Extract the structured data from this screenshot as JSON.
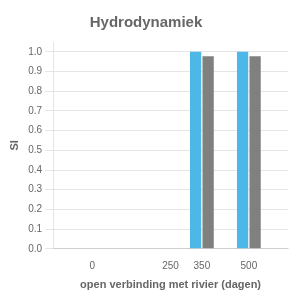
{
  "chart_data": {
    "type": "bar",
    "title": "Hydrodynamiek",
    "xlabel": "open verbinding met rivier (dagen)",
    "ylabel": "SI",
    "x": [
      350,
      500
    ],
    "series": [
      {
        "color": "#4db8e8",
        "values": [
          1.0,
          1.0
        ]
      },
      {
        "color": "#808080",
        "values": [
          0.978,
          0.978
        ]
      }
    ],
    "xlim": [
      -125,
      625
    ],
    "xticks": [
      0,
      250,
      350,
      500
    ],
    "ylim": [
      0.0,
      1.05
    ],
    "yticks": [
      {
        "value": 0.0,
        "label": "0.0"
      },
      0.1,
      0.2,
      0.3,
      0.4,
      0.5,
      0.6,
      0.7,
      0.8,
      0.9,
      {
        "value": 1.0,
        "label": "1.0"
      }
    ],
    "grid": true
  }
}
